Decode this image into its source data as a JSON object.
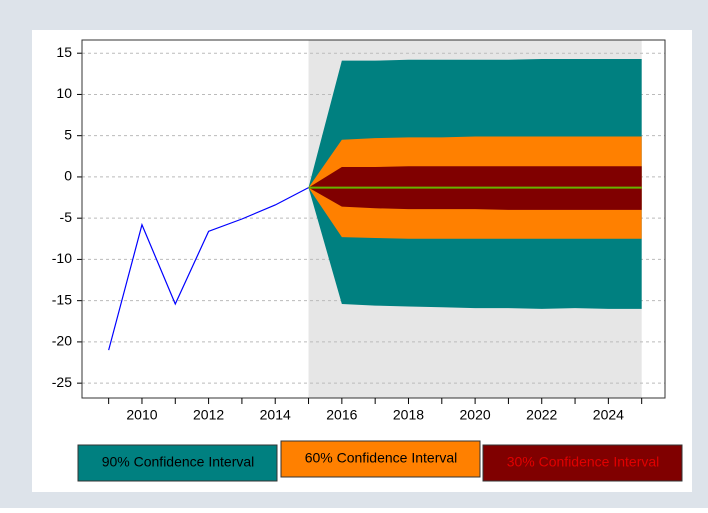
{
  "chart_data": {
    "type": "fan",
    "xlim": [
      2008.2,
      2025.7
    ],
    "ylim": [
      -26.8,
      16.6
    ],
    "yticks": [
      -25,
      -20,
      -15,
      -10,
      -5,
      0,
      5,
      10,
      15
    ],
    "xticks": [
      2010,
      2012,
      2014,
      2016,
      2018,
      2020,
      2022,
      2024
    ],
    "xminorticks": [
      2009,
      2011,
      2013,
      2015,
      2017,
      2019,
      2021,
      2023,
      2025
    ],
    "grid": true,
    "actual": {
      "color": "#0000ff",
      "x": [
        2009,
        2010,
        2011,
        2012,
        2013,
        2014,
        2015
      ],
      "values": [
        -21,
        -5.8,
        -15.4,
        -6.6,
        -5.1,
        -3.4,
        -1.3
      ]
    },
    "forecast_x": [
      2015,
      2016,
      2017,
      2018,
      2019,
      2020,
      2021,
      2022,
      2023,
      2024,
      2025
    ],
    "median": {
      "color": "#66b300",
      "values": [
        -1.3,
        -1.3,
        -1.3,
        -1.3,
        -1.3,
        -1.3,
        -1.3,
        -1.3,
        -1.3,
        -1.3,
        -1.3
      ]
    },
    "series": [
      {
        "name": "90% Confidence Interval",
        "color": "#008080",
        "upper": [
          -1.3,
          14.1,
          14.1,
          14.2,
          14.2,
          14.2,
          14.2,
          14.3,
          14.3,
          14.3,
          14.3
        ],
        "lower": [
          -1.3,
          -15.4,
          -15.6,
          -15.7,
          -15.8,
          -15.9,
          -15.9,
          -16.0,
          -15.9,
          -16.0,
          -16.0
        ]
      },
      {
        "name": "60% Confidence Interval",
        "color": "#ff8000",
        "upper": [
          -1.3,
          4.5,
          4.7,
          4.8,
          4.8,
          4.9,
          4.9,
          4.9,
          4.9,
          4.9,
          4.9
        ],
        "lower": [
          -1.3,
          -7.3,
          -7.4,
          -7.5,
          -7.5,
          -7.5,
          -7.5,
          -7.5,
          -7.5,
          -7.5,
          -7.5
        ]
      },
      {
        "name": "30% Confidence Interval",
        "color": "#800000",
        "upper": [
          -1.3,
          1.2,
          1.2,
          1.3,
          1.3,
          1.3,
          1.3,
          1.3,
          1.3,
          1.3,
          1.3
        ],
        "lower": [
          -1.3,
          -3.6,
          -3.8,
          -3.9,
          -3.9,
          -3.9,
          -4.0,
          -4.0,
          -4.0,
          -4.0,
          -4.0
        ]
      }
    ]
  }
}
